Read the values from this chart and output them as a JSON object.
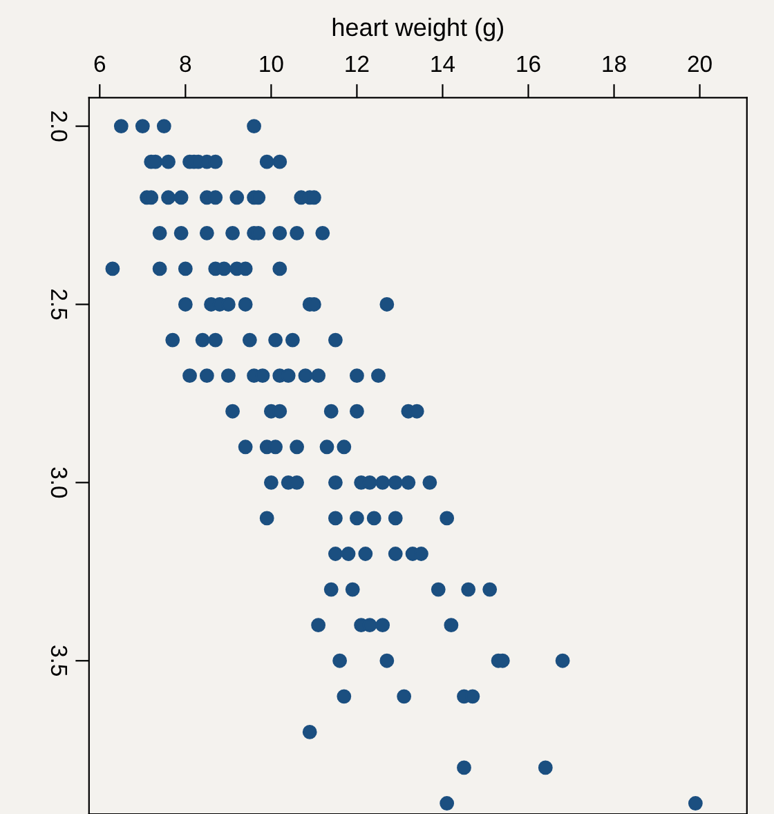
{
  "chart_data": {
    "type": "scatter",
    "xlabel": "heart weight (g)",
    "color": "#1b4f80",
    "marker": "circle",
    "xlim": [
      5.75,
      21.1
    ],
    "xticks": [
      6,
      8,
      10,
      12,
      14,
      16,
      18,
      20
    ],
    "ylim": [
      3.93,
      1.92
    ],
    "yticks": [
      {
        "value": 2.0,
        "label": "2.0"
      },
      {
        "value": 2.5,
        "label": "2.5"
      },
      {
        "value": 3.0,
        "label": "3.0"
      },
      {
        "value": 3.5,
        "label": "3.5"
      }
    ],
    "x": [
      6.5,
      7.0,
      7.5,
      9.6,
      7.2,
      7.3,
      7.6,
      8.1,
      8.2,
      8.3,
      8.5,
      8.7,
      9.9,
      10.2,
      7.1,
      7.2,
      7.6,
      7.9,
      8.5,
      8.7,
      9.2,
      9.6,
      9.7,
      10.7,
      10.9,
      11.0,
      7.4,
      7.9,
      8.5,
      9.1,
      9.6,
      9.7,
      10.2,
      10.6,
      11.2,
      6.3,
      7.4,
      8.0,
      8.7,
      8.9,
      9.2,
      9.4,
      10.2,
      8.0,
      8.6,
      8.8,
      9.0,
      9.4,
      10.9,
      11.0,
      12.7,
      7.7,
      8.4,
      8.7,
      9.5,
      10.1,
      10.5,
      11.5,
      8.1,
      8.5,
      9.0,
      9.6,
      9.8,
      10.2,
      10.4,
      10.8,
      11.1,
      12.0,
      12.5,
      9.1,
      10.0,
      10.2,
      11.4,
      12.0,
      13.2,
      13.4,
      9.4,
      9.9,
      10.1,
      10.6,
      11.3,
      11.7,
      10.0,
      10.4,
      10.6,
      11.5,
      12.1,
      12.3,
      12.6,
      12.9,
      13.2,
      13.7,
      9.9,
      11.5,
      12.0,
      12.4,
      12.9,
      14.1,
      11.5,
      11.8,
      12.2,
      12.9,
      13.3,
      13.5,
      11.4,
      11.9,
      13.9,
      14.6,
      15.1,
      11.1,
      12.1,
      12.3,
      12.6,
      14.2,
      11.6,
      12.7,
      15.3,
      15.4,
      16.8,
      11.7,
      13.1,
      14.5,
      14.7,
      10.9,
      14.5,
      16.4,
      14.1,
      19.9
    ],
    "values": [
      2.0,
      2.0,
      2.0,
      2.0,
      2.1,
      2.1,
      2.1,
      2.1,
      2.1,
      2.1,
      2.1,
      2.1,
      2.1,
      2.1,
      2.2,
      2.2,
      2.2,
      2.2,
      2.2,
      2.2,
      2.2,
      2.2,
      2.2,
      2.2,
      2.2,
      2.2,
      2.3,
      2.3,
      2.3,
      2.3,
      2.3,
      2.3,
      2.3,
      2.3,
      2.3,
      2.4,
      2.4,
      2.4,
      2.4,
      2.4,
      2.4,
      2.4,
      2.4,
      2.5,
      2.5,
      2.5,
      2.5,
      2.5,
      2.5,
      2.5,
      2.5,
      2.6,
      2.6,
      2.6,
      2.6,
      2.6,
      2.6,
      2.6,
      2.7,
      2.7,
      2.7,
      2.7,
      2.7,
      2.7,
      2.7,
      2.7,
      2.7,
      2.7,
      2.7,
      2.8,
      2.8,
      2.8,
      2.8,
      2.8,
      2.8,
      2.8,
      2.9,
      2.9,
      2.9,
      2.9,
      2.9,
      2.9,
      3.0,
      3.0,
      3.0,
      3.0,
      3.0,
      3.0,
      3.0,
      3.0,
      3.0,
      3.0,
      3.1,
      3.1,
      3.1,
      3.1,
      3.1,
      3.1,
      3.2,
      3.2,
      3.2,
      3.2,
      3.2,
      3.2,
      3.3,
      3.3,
      3.3,
      3.3,
      3.3,
      3.4,
      3.4,
      3.4,
      3.4,
      3.4,
      3.5,
      3.5,
      3.5,
      3.5,
      3.5,
      3.6,
      3.6,
      3.6,
      3.6,
      3.7,
      3.8,
      3.8,
      3.9,
      3.9
    ],
    "grid": false
  }
}
